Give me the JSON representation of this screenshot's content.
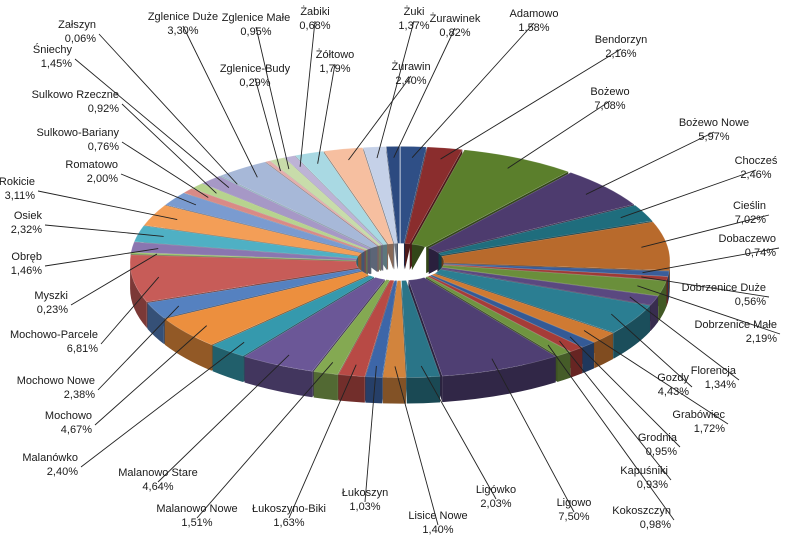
{
  "chart_data": {
    "type": "pie",
    "style": "3d-exploded-doughnut",
    "title": "",
    "slices": [
      {
        "label": "Adamowo",
        "value": 1.58,
        "text": "1,58%",
        "color": "#2f4f86"
      },
      {
        "label": "Bendorzyn",
        "value": 2.16,
        "text": "2,16%",
        "color": "#8a2d2d"
      },
      {
        "label": "Bożewo",
        "value": 7.08,
        "text": "7,08%",
        "color": "#5b7f2c"
      },
      {
        "label": "Bożewo Nowe",
        "value": 5.97,
        "text": "5,97%",
        "color": "#4d3b6e"
      },
      {
        "label": "Chocześ",
        "value": 2.46,
        "text": "2,46%",
        "color": "#1f6d7d"
      },
      {
        "label": "Cieślin",
        "value": 7.02,
        "text": "7,02%",
        "color": "#b86a2c"
      },
      {
        "label": "Dobaczewo",
        "value": 0.74,
        "text": "0,74%",
        "color": "#3a5e9a"
      },
      {
        "label": "Dobrzenice Duże",
        "value": 0.56,
        "text": "0,56%",
        "color": "#9e3a36"
      },
      {
        "label": "Dobrzenice Małe",
        "value": 2.19,
        "text": "2,19%",
        "color": "#6a8f3b"
      },
      {
        "label": "Florencja",
        "value": 1.34,
        "text": "1,34%",
        "color": "#5a4880"
      },
      {
        "label": "Gozdy",
        "value": 4.43,
        "text": "4,43%",
        "color": "#2b7e92"
      },
      {
        "label": "Grabówiec",
        "value": 1.72,
        "text": "1,72%",
        "color": "#cf7a33"
      },
      {
        "label": "Grodnia",
        "value": 0.95,
        "text": "0,95%",
        "color": "#345a96"
      },
      {
        "label": "Kapuśniki",
        "value": 0.93,
        "text": "0,93%",
        "color": "#a63c38"
      },
      {
        "label": "Kokoszczyn",
        "value": 0.98,
        "text": "0,98%",
        "color": "#6f9440"
      },
      {
        "label": "Ligowo",
        "value": 7.5,
        "text": "7,50%",
        "color": "#4f3f73"
      },
      {
        "label": "Ligówko",
        "value": 2.03,
        "text": "2,03%",
        "color": "#2a7588"
      },
      {
        "label": "Lisice Nowe",
        "value": 1.4,
        "text": "1,40%",
        "color": "#d2843d"
      },
      {
        "label": "Łukoszyn",
        "value": 1.03,
        "text": "1,03%",
        "color": "#3d66a8"
      },
      {
        "label": "Łukoszyno-Biki",
        "value": 1.63,
        "text": "1,63%",
        "color": "#b84a45"
      },
      {
        "label": "Malanowo Nowe",
        "value": 1.51,
        "text": "1,51%",
        "color": "#84a952"
      },
      {
        "label": "Malanowo Stare",
        "value": 4.64,
        "text": "4,64%",
        "color": "#6b5797"
      },
      {
        "label": "Malanówko",
        "value": 2.4,
        "text": "2,40%",
        "color": "#3599ad"
      },
      {
        "label": "Mochowo",
        "value": 4.67,
        "text": "4,67%",
        "color": "#ec8f3e"
      },
      {
        "label": "Mochowo Nowe",
        "value": 2.38,
        "text": "2,38%",
        "color": "#5581c0"
      },
      {
        "label": "Mochowo-Parcele",
        "value": 6.81,
        "text": "6,81%",
        "color": "#c75c58"
      },
      {
        "label": "Myszki",
        "value": 0.23,
        "text": "0,23%",
        "color": "#9bc16a"
      },
      {
        "label": "Obręb",
        "value": 1.46,
        "text": "1,46%",
        "color": "#8a76b0"
      },
      {
        "label": "Osiek",
        "value": 2.32,
        "text": "2,32%",
        "color": "#4fb0c4"
      },
      {
        "label": "Rokicie",
        "value": 3.11,
        "text": "3,11%",
        "color": "#f39e57"
      },
      {
        "label": "Romatowo",
        "value": 2.0,
        "text": "2,00%",
        "color": "#7a9bd0"
      },
      {
        "label": "Sulkowo-Bariany",
        "value": 0.76,
        "text": "0,76%",
        "color": "#d98a86"
      },
      {
        "label": "Sulkowo Rzeczne",
        "value": 0.92,
        "text": "0,92%",
        "color": "#b7d38e"
      },
      {
        "label": "Śniechy",
        "value": 1.45,
        "text": "1,45%",
        "color": "#a698c6"
      },
      {
        "label": "Załszyn",
        "value": 0.06,
        "text": "0,06%",
        "color": "#86c8d6"
      },
      {
        "label": "Zglenice Duże",
        "value": 3.3,
        "text": "3,30%",
        "color": "#a7b8d8"
      },
      {
        "label": "Zglenice-Budy",
        "value": 0.29,
        "text": "0,29%",
        "color": "#e3aeac"
      },
      {
        "label": "Zglenice Małe",
        "value": 0.95,
        "text": "0,95%",
        "color": "#c8dcaa"
      },
      {
        "label": "Żabiki",
        "value": 0.68,
        "text": "0,68%",
        "color": "#bdb3d6"
      },
      {
        "label": "Żółtowo",
        "value": 1.79,
        "text": "1,79%",
        "color": "#a9d9e3"
      },
      {
        "label": "Żurawin",
        "value": 2.4,
        "text": "2,40%",
        "color": "#f6bfa0"
      },
      {
        "label": "Żuki",
        "value": 1.37,
        "text": "1,37%",
        "color": "#c5d1e8"
      },
      {
        "label": "Żurawinek",
        "value": 0.82,
        "text": "0,82%",
        "color": "#2c4a80"
      }
    ]
  }
}
